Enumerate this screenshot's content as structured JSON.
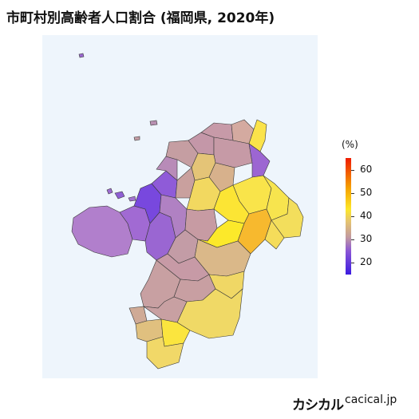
{
  "title": "市町村別高齢者人口割合 (福岡県, 2020年)",
  "legend": {
    "unit": "(%)",
    "ticks": [
      {
        "label": "20",
        "value": 20
      },
      {
        "label": "30",
        "value": 30
      },
      {
        "label": "40",
        "value": 40
      },
      {
        "label": "50",
        "value": 50
      },
      {
        "label": "60",
        "value": 60
      }
    ],
    "range": [
      15,
      65
    ],
    "colors": [
      "#3b1be0",
      "#8a56d6",
      "#c29aa0",
      "#e6c56e",
      "#fde72a",
      "#f5a300",
      "#ee1c00"
    ]
  },
  "brand": {
    "logo": "カシカル",
    "domain": "cacical.jp"
  },
  "map": {
    "colors": {
      "background": "#eef5fc",
      "low": "#7e3fd9",
      "mid": "#c8a0a2",
      "high": "#fbe34a",
      "highest": "#f5b000"
    }
  }
}
